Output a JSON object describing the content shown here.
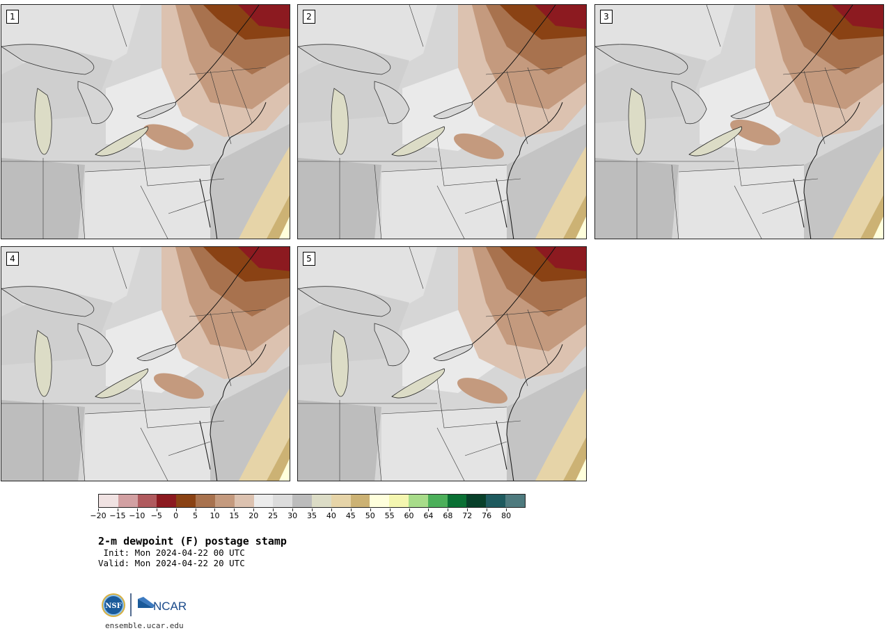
{
  "panels": [
    {
      "label": "1"
    },
    {
      "label": "2"
    },
    {
      "label": "3"
    },
    {
      "label": "4"
    },
    {
      "label": "5"
    }
  ],
  "colorbar": {
    "colors": [
      "#f0e2e2",
      "#d2a0a2",
      "#b05a5e",
      "#8c1a20",
      "#8a4214",
      "#a8724e",
      "#c49a7e",
      "#dcc2b0",
      "#ececec",
      "#dcdcdc",
      "#bcbcbc",
      "#dcdcc6",
      "#e6d4a8",
      "#ccb274",
      "#ffffdc",
      "#f4f6b0",
      "#a8dc8a",
      "#4caf5a",
      "#0a7034",
      "#08402a",
      "#1e5a5e",
      "#4e7a7e"
    ],
    "tick_labels": [
      "−20",
      "−15",
      "−10",
      "−5",
      "0",
      "5",
      "10",
      "15",
      "20",
      "25",
      "30",
      "35",
      "40",
      "45",
      "50",
      "55",
      "60",
      "64",
      "68",
      "72",
      "76",
      "80"
    ]
  },
  "title": "2-m dewpoint (F) postage stamp",
  "init": " Init: Mon 2024-04-22 00 UTC",
  "valid": "Valid: Mon 2024-04-22 20 UTC",
  "logos": {
    "nsf": "NSF",
    "ncar": "NCAR"
  },
  "footer": "ensemble.ucar.edu"
}
